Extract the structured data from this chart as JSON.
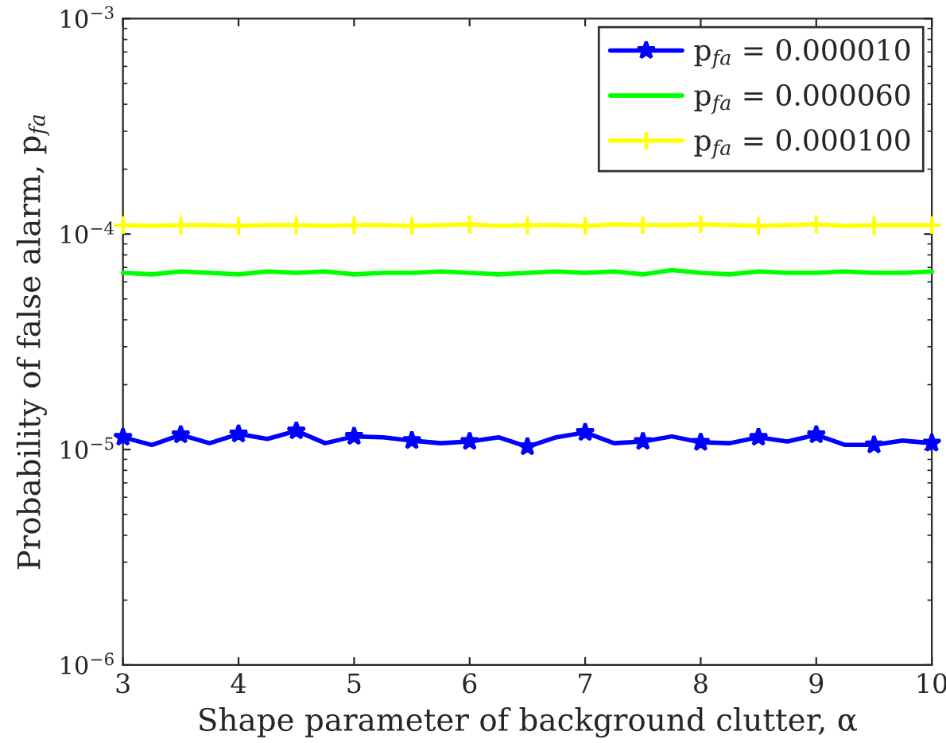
{
  "chart_data": {
    "type": "line",
    "xlabel": "Shape parameter of background clutter, α",
    "ylabel": "Probability of false alarm, p$_{fa}$",
    "x": [
      3,
      3.25,
      3.5,
      3.75,
      4,
      4.25,
      4.5,
      4.75,
      5,
      5.25,
      5.5,
      5.75,
      6,
      6.25,
      6.5,
      6.75,
      7,
      7.25,
      7.5,
      7.75,
      8,
      8.25,
      8.5,
      8.75,
      9,
      9.25,
      9.5,
      9.75,
      10
    ],
    "series": [
      {
        "name": "p$_{fa}$ = 0.000010",
        "color": "#0000ff",
        "marker": "star",
        "values": [
          1.14e-05,
          1.05e-05,
          1.17e-05,
          1.07e-05,
          1.18e-05,
          1.12e-05,
          1.22e-05,
          1.07e-05,
          1.15e-05,
          1.14e-05,
          1.1e-05,
          1.07e-05,
          1.09e-05,
          1.14e-05,
          1.03e-05,
          1.14e-05,
          1.2e-05,
          1.07e-05,
          1.09e-05,
          1.15e-05,
          1.08e-05,
          1.07e-05,
          1.14e-05,
          1.09e-05,
          1.17e-05,
          1.05e-05,
          1.05e-05,
          1.1e-05,
          1.07e-05
        ]
      },
      {
        "name": "p$_{fa}$ = 0.000060",
        "color": "#00ff00",
        "marker": "none",
        "values": [
          6.6e-05,
          6.5e-05,
          6.7e-05,
          6.6e-05,
          6.5e-05,
          6.7e-05,
          6.6e-05,
          6.7e-05,
          6.5e-05,
          6.6e-05,
          6.6e-05,
          6.7e-05,
          6.6e-05,
          6.5e-05,
          6.6e-05,
          6.7e-05,
          6.6e-05,
          6.7e-05,
          6.5e-05,
          6.8e-05,
          6.6e-05,
          6.5e-05,
          6.7e-05,
          6.6e-05,
          6.6e-05,
          6.7e-05,
          6.6e-05,
          6.6e-05,
          6.7e-05
        ]
      },
      {
        "name": "p$_{fa}$ = 0.000100",
        "color": "#ffff00",
        "marker": "cross",
        "values": [
          0.00011,
          0.000109,
          0.00011,
          0.00011,
          0.000109,
          0.00011,
          0.00011,
          0.000109,
          0.00011,
          0.00011,
          0.000109,
          0.00011,
          0.000111,
          0.000109,
          0.00011,
          0.00011,
          0.000109,
          0.000111,
          0.00011,
          0.00011,
          0.000111,
          0.00011,
          0.000109,
          0.00011,
          0.000111,
          0.000109,
          0.00011,
          0.00011,
          0.00011
        ]
      }
    ],
    "log": "y",
    "xlim": [
      3,
      10
    ],
    "xticks": [
      3,
      4,
      5,
      6,
      7,
      8,
      9,
      10
    ],
    "ylim": [
      1e-06,
      0.001
    ],
    "yticks": [
      {
        "value": 1e-06,
        "label": "10$^{−6}$"
      },
      {
        "value": 1e-05,
        "label": "10$^{−5}$"
      },
      {
        "value": 0.0001,
        "label": "10$^{−4}$"
      },
      {
        "value": 0.001,
        "label": "10$^{−3}$"
      }
    ],
    "legend": "top right",
    "grid": false,
    "line_style": "solid"
  }
}
